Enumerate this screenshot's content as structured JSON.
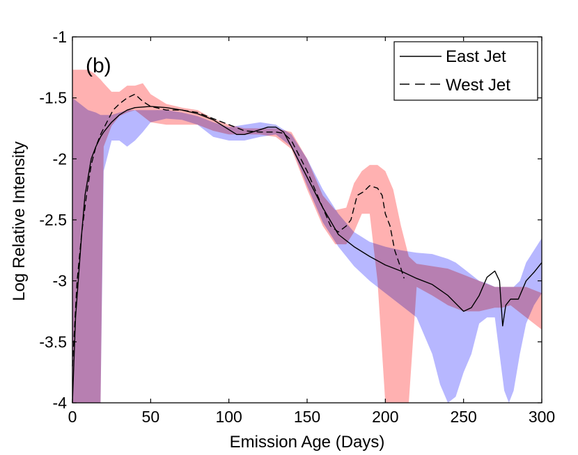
{
  "chart_data": {
    "type": "line",
    "panel_label": "(b)",
    "xlabel": "Emission Age (Days)",
    "ylabel": "Log Relative Intensity",
    "xlim": [
      0,
      300
    ],
    "ylim": [
      -4,
      -1
    ],
    "xticks": [
      0,
      50,
      100,
      150,
      200,
      250,
      300
    ],
    "xtick_labels": [
      "0",
      "50",
      "100",
      "150",
      "200",
      "250",
      "300"
    ],
    "yticks": [
      -4,
      -3.5,
      -3,
      -2.5,
      -2,
      -1.5,
      -1
    ],
    "ytick_labels": [
      "-4",
      "-3.5",
      "-3",
      "-2.5",
      "-2",
      "-1.5",
      "-1"
    ],
    "grid": false,
    "legend": {
      "position": "top-right",
      "entries": [
        "East Jet",
        "West Jet"
      ]
    },
    "colors": {
      "east_band": "#aaaaff",
      "west_band": "#ffa3a3",
      "line": "#000000"
    },
    "series": [
      {
        "name": "East Jet",
        "style": "solid",
        "x": [
          0,
          2,
          4,
          6,
          8,
          10,
          12,
          15,
          18,
          20,
          25,
          30,
          35,
          40,
          50,
          60,
          70,
          80,
          90,
          100,
          105,
          110,
          115,
          120,
          125,
          130,
          135,
          140,
          150,
          160,
          170,
          180,
          190,
          200,
          210,
          220,
          230,
          240,
          250,
          255,
          260,
          265,
          270,
          273,
          275,
          277,
          280,
          285,
          290,
          295,
          300
        ],
        "values": [
          -4.0,
          -3.3,
          -2.95,
          -2.6,
          -2.3,
          -2.15,
          -2.0,
          -1.9,
          -1.82,
          -1.78,
          -1.7,
          -1.64,
          -1.6,
          -1.58,
          -1.57,
          -1.58,
          -1.6,
          -1.63,
          -1.68,
          -1.76,
          -1.8,
          -1.8,
          -1.78,
          -1.76,
          -1.74,
          -1.74,
          -1.78,
          -1.9,
          -2.15,
          -2.4,
          -2.62,
          -2.72,
          -2.8,
          -2.87,
          -2.92,
          -2.98,
          -3.03,
          -3.12,
          -3.25,
          -3.22,
          -3.12,
          -2.97,
          -2.92,
          -3.0,
          -3.37,
          -3.2,
          -3.15,
          -3.15,
          -3.0,
          -2.93,
          -2.85
        ]
      },
      {
        "name": "West Jet",
        "style": "dashed",
        "x": [
          0,
          3,
          6,
          9,
          12,
          15,
          18,
          22,
          26,
          30,
          35,
          40,
          45,
          50,
          60,
          70,
          80,
          90,
          100,
          110,
          120,
          125,
          130,
          135,
          140,
          150,
          160,
          165,
          170,
          175,
          178,
          182,
          186,
          190,
          195,
          198,
          200,
          203,
          206,
          210,
          212
        ],
        "values": [
          -3.7,
          -3.0,
          -2.6,
          -2.3,
          -2.05,
          -1.9,
          -1.8,
          -1.7,
          -1.6,
          -1.55,
          -1.5,
          -1.47,
          -1.53,
          -1.57,
          -1.6,
          -1.6,
          -1.62,
          -1.67,
          -1.72,
          -1.77,
          -1.78,
          -1.78,
          -1.78,
          -1.79,
          -1.85,
          -2.1,
          -2.4,
          -2.55,
          -2.6,
          -2.55,
          -2.5,
          -2.3,
          -2.27,
          -2.22,
          -2.24,
          -2.3,
          -2.45,
          -2.55,
          -2.75,
          -2.9,
          -2.98
        ]
      }
    ],
    "bands": [
      {
        "name": "East Jet uncertainty",
        "x": [
          0,
          5,
          10,
          15,
          18,
          20,
          25,
          30,
          35,
          40,
          45,
          50,
          60,
          70,
          80,
          90,
          100,
          110,
          120,
          130,
          140,
          150,
          160,
          170,
          180,
          190,
          200,
          210,
          220,
          230,
          235,
          240,
          245,
          250,
          255,
          260,
          265,
          270,
          273,
          276,
          279,
          282,
          286,
          290,
          295,
          300
        ],
        "upper": [
          -1.5,
          -1.55,
          -1.6,
          -1.62,
          -1.64,
          -1.64,
          -1.64,
          -1.62,
          -1.6,
          -1.6,
          -1.6,
          -1.6,
          -1.6,
          -1.62,
          -1.65,
          -1.7,
          -1.74,
          -1.72,
          -1.7,
          -1.72,
          -1.8,
          -2.0,
          -2.25,
          -2.45,
          -2.6,
          -2.68,
          -2.72,
          -2.75,
          -2.77,
          -2.78,
          -2.8,
          -2.82,
          -2.85,
          -2.9,
          -2.95,
          -3.0,
          -3.02,
          -3.05,
          -3.05,
          -3.05,
          -3.05,
          -3.05,
          -3.0,
          -2.85,
          -2.75,
          -2.65
        ],
        "lower": [
          -4.0,
          -4.0,
          -4.0,
          -4.0,
          -4.0,
          -2.1,
          -1.85,
          -1.85,
          -1.9,
          -1.85,
          -1.78,
          -1.7,
          -1.67,
          -1.68,
          -1.72,
          -1.82,
          -1.85,
          -1.85,
          -1.82,
          -1.8,
          -1.9,
          -2.22,
          -2.52,
          -2.72,
          -2.88,
          -3.0,
          -3.1,
          -3.2,
          -3.3,
          -3.6,
          -3.85,
          -4.0,
          -3.95,
          -3.75,
          -3.6,
          -3.35,
          -3.3,
          -3.3,
          -3.6,
          -3.9,
          -4.0,
          -3.9,
          -3.6,
          -3.35,
          -3.2,
          -3.1
        ]
      },
      {
        "name": "West Jet uncertainty",
        "x": [
          0,
          5,
          10,
          14,
          18,
          20,
          25,
          30,
          35,
          40,
          45,
          50,
          60,
          70,
          80,
          90,
          100,
          110,
          120,
          130,
          140,
          150,
          160,
          168,
          175,
          180,
          185,
          190,
          195,
          200,
          205,
          210,
          215,
          220,
          230,
          240,
          250,
          260,
          270,
          275,
          280,
          290,
          300
        ],
        "upper": [
          -1.27,
          -1.27,
          -1.27,
          -1.3,
          -1.35,
          -1.38,
          -1.45,
          -1.45,
          -1.4,
          -1.4,
          -1.38,
          -1.47,
          -1.55,
          -1.58,
          -1.6,
          -1.67,
          -1.72,
          -1.75,
          -1.75,
          -1.75,
          -1.78,
          -2.0,
          -2.3,
          -2.42,
          -2.4,
          -2.2,
          -2.1,
          -2.05,
          -2.05,
          -2.1,
          -2.25,
          -2.55,
          -2.8,
          -2.86,
          -2.88,
          -2.9,
          -2.95,
          -3.0,
          -3.05,
          -3.05,
          -3.05,
          -3.05,
          -3.1
        ],
        "lower": [
          -4.0,
          -4.0,
          -4.0,
          -4.0,
          -4.0,
          -1.9,
          -1.73,
          -1.65,
          -1.62,
          -1.6,
          -1.65,
          -1.7,
          -1.72,
          -1.72,
          -1.72,
          -1.77,
          -1.8,
          -1.8,
          -1.8,
          -1.82,
          -1.92,
          -2.25,
          -2.55,
          -2.7,
          -2.7,
          -2.6,
          -2.45,
          -2.45,
          -3.0,
          -4.0,
          -4.0,
          -4.0,
          -4.0,
          -3.05,
          -3.12,
          -3.2,
          -3.25,
          -3.25,
          -3.22,
          -3.22,
          -3.2,
          -3.3,
          -3.4
        ]
      }
    ]
  }
}
